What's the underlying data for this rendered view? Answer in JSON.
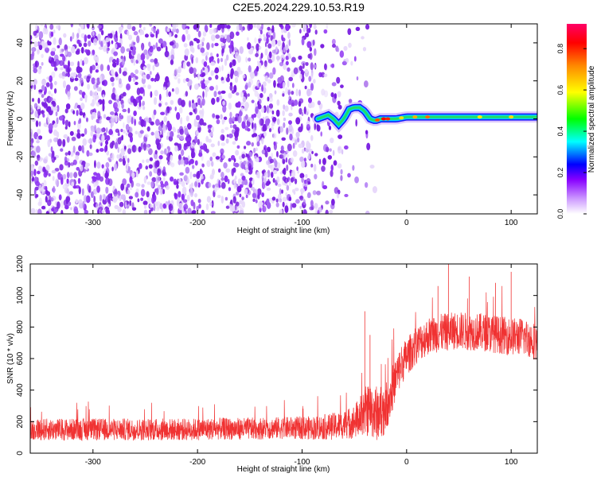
{
  "title": "C2E5.2024.229.10.53.R19",
  "colors": {
    "snr_line": "#f03232",
    "frame": "#000000",
    "spectrogram_noise": "#7a1fe0",
    "signal_trace": "#22dd66"
  },
  "chart_data": [
    {
      "type": "heatmap",
      "title": "C2E5.2024.229.10.53.R19",
      "xlabel": "Height of straight line (km)",
      "ylabel": "Frequency (Hz)",
      "xlim": [
        -360,
        125
      ],
      "ylim": [
        -50,
        50
      ],
      "xticks": [
        -300,
        -200,
        -100,
        0,
        100
      ],
      "yticks": [
        -40,
        -20,
        0,
        20,
        40
      ],
      "colorbar": {
        "label": "Normalized spectral amplitude",
        "range": [
          0.0,
          0.92
        ],
        "ticks": [
          0.0,
          0.2,
          0.4,
          0.6,
          0.8
        ],
        "colormap": [
          "#ffffff",
          "#cc99ff",
          "#8800ff",
          "#0000ff",
          "#00ffff",
          "#00ff00",
          "#ffff00",
          "#ff8800",
          "#ff0000",
          "#ff0066"
        ]
      },
      "signal_trace": {
        "x": [
          -85,
          -80,
          -75,
          -70,
          -65,
          -60,
          -55,
          -50,
          -45,
          -40,
          -35,
          -30,
          -25,
          -20,
          -10,
          0,
          20,
          40,
          60,
          80,
          100,
          125
        ],
        "y": [
          0,
          1,
          2,
          0,
          -3,
          0,
          5,
          6,
          6,
          4,
          0,
          -1,
          0,
          0,
          0,
          1,
          1,
          1,
          1,
          1,
          1,
          1
        ]
      },
      "grid": false,
      "legend": "none"
    },
    {
      "type": "line",
      "title": "",
      "xlabel": "Height of straight line (km)",
      "ylabel": "SNR (10 * v/v)",
      "xlim": [
        -360,
        125
      ],
      "ylim": [
        0,
        1200
      ],
      "xticks": [
        -300,
        -200,
        -100,
        0,
        100
      ],
      "yticks": [
        0,
        200,
        400,
        600,
        800,
        1000,
        1200
      ],
      "series": [
        {
          "x": [
            -360,
            -330,
            -300,
            -270,
            -240,
            -210,
            -180,
            -150,
            -120,
            -90,
            -80,
            -70,
            -60,
            -50,
            -45,
            -40,
            -35,
            -30,
            -25,
            -20,
            -15,
            -10,
            -5,
            0,
            5,
            10,
            20,
            30,
            40,
            50,
            60,
            70,
            80,
            90,
            100,
            110,
            120,
            125
          ],
          "mean": [
            150,
            150,
            150,
            150,
            150,
            150,
            155,
            155,
            160,
            160,
            165,
            170,
            180,
            200,
            230,
            260,
            280,
            250,
            260,
            290,
            380,
            480,
            560,
            610,
            650,
            690,
            740,
            760,
            770,
            780,
            770,
            770,
            760,
            750,
            740,
            740,
            720,
            700
          ],
          "spread": [
            70,
            70,
            70,
            70,
            70,
            70,
            70,
            70,
            70,
            75,
            80,
            85,
            90,
            110,
            130,
            160,
            170,
            180,
            170,
            160,
            150,
            140,
            130,
            120,
            120,
            120,
            120,
            120,
            120,
            120,
            120,
            120,
            120,
            120,
            120,
            120,
            120,
            120
          ],
          "peaks": [
            [
              -40,
              900
            ],
            [
              -35,
              750
            ],
            [
              30,
              1060
            ],
            [
              40,
              1200
            ],
            [
              60,
              1120
            ],
            [
              85,
              1080
            ],
            [
              100,
              1150
            ]
          ]
        }
      ],
      "grid": false,
      "legend": "none"
    }
  ]
}
